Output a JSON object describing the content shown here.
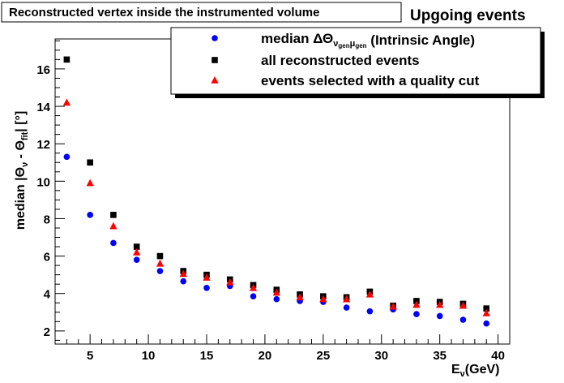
{
  "header": {
    "boxed_title": "Reconstructed vertex inside the instrumented volume",
    "corner_title": "Upgoing events"
  },
  "chart_data": {
    "type": "scatter",
    "xlabel": "Eν(GeV)",
    "ylabel": "median |Θν - Θfit| [°]",
    "xlim": [
      2,
      41
    ],
    "ylim": [
      1.3,
      17.6
    ],
    "x_ticks": [
      5,
      10,
      15,
      20,
      25,
      30,
      35,
      40
    ],
    "y_ticks": [
      2,
      4,
      6,
      8,
      10,
      12,
      14,
      16
    ],
    "grid": false,
    "legend_position": "top-right",
    "x": [
      3,
      5,
      7,
      9,
      11,
      13,
      15,
      17,
      19,
      21,
      23,
      25,
      27,
      29,
      31,
      33,
      35,
      37,
      39
    ],
    "series": [
      {
        "name": "median ΔΘνgenμgen (Intrinsic Angle)",
        "marker": "circle",
        "color": "#0000ff",
        "values": [
          11.3,
          8.2,
          6.7,
          5.8,
          5.2,
          4.65,
          4.3,
          4.4,
          3.85,
          3.7,
          3.6,
          3.55,
          3.25,
          3.05,
          3.15,
          2.9,
          2.8,
          2.6,
          2.4
        ]
      },
      {
        "name": "all reconstructed events",
        "marker": "square",
        "color": "#000000",
        "values": [
          16.5,
          11.0,
          8.2,
          6.5,
          6.0,
          5.2,
          5.0,
          4.75,
          4.45,
          4.2,
          3.95,
          3.85,
          3.8,
          4.1,
          3.35,
          3.6,
          3.55,
          3.45,
          3.2
        ]
      },
      {
        "name": "events selected with a quality cut",
        "marker": "triangle",
        "color": "#ff0000",
        "values": [
          14.2,
          9.9,
          7.6,
          6.2,
          5.6,
          5.05,
          4.85,
          4.6,
          4.3,
          4.05,
          3.8,
          3.7,
          3.7,
          3.95,
          3.3,
          3.4,
          3.4,
          3.35,
          2.95
        ]
      }
    ]
  }
}
